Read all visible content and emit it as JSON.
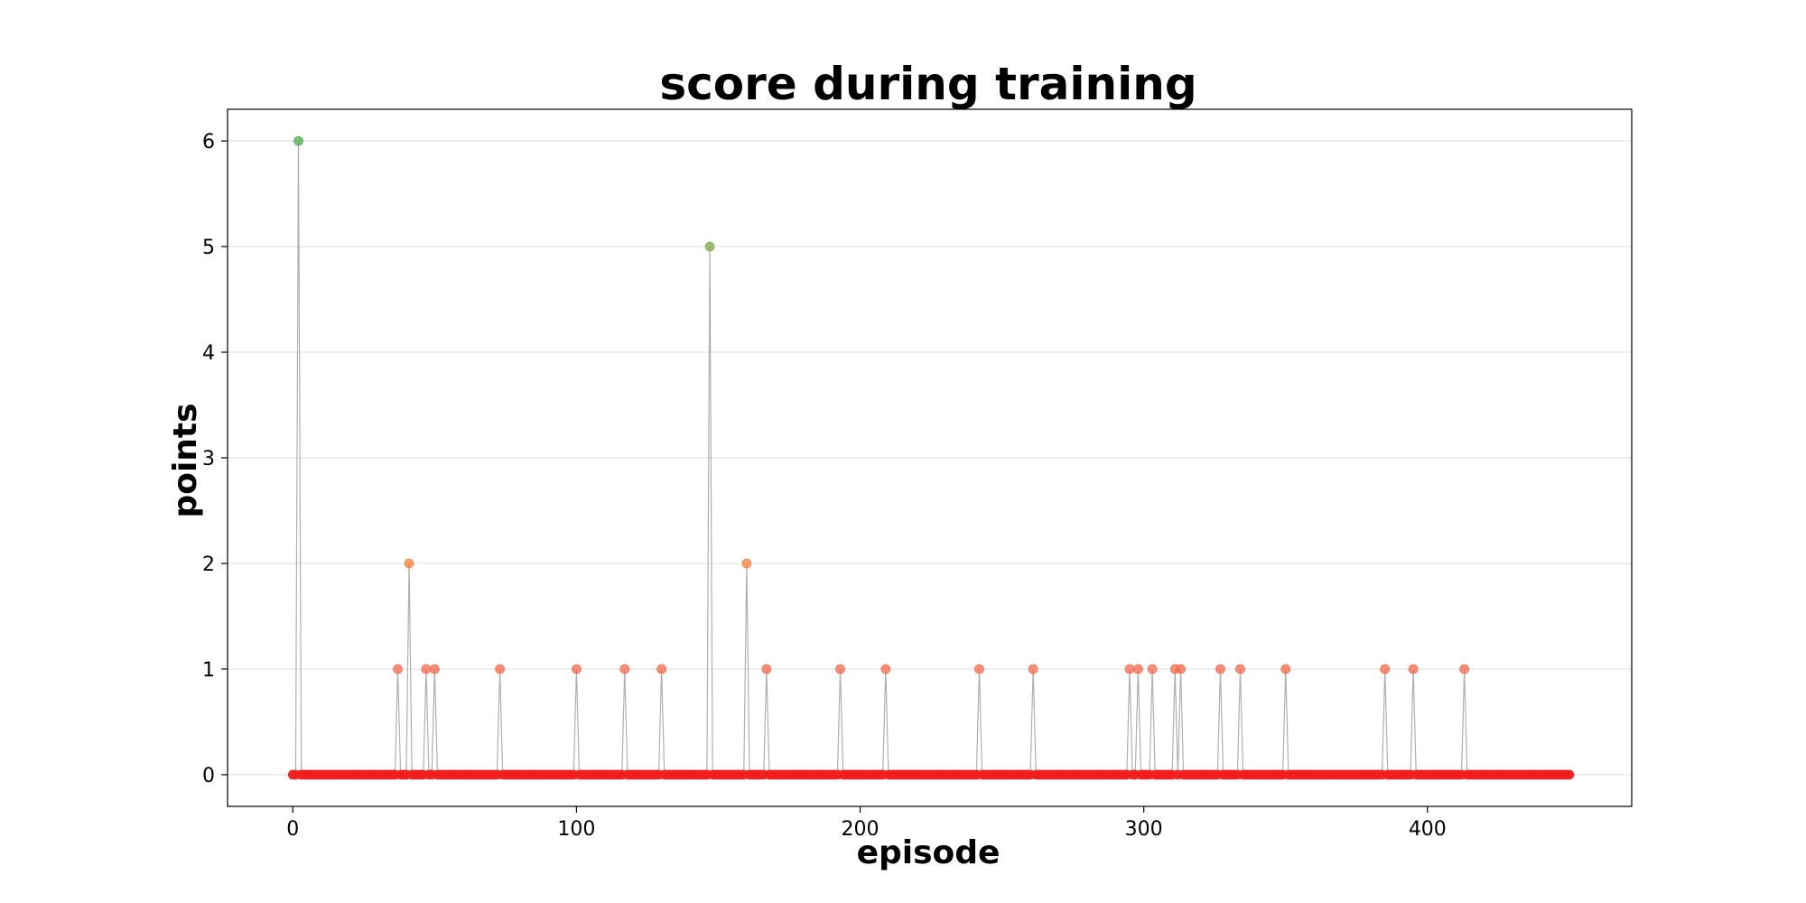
{
  "chart_data": {
    "type": "scatter",
    "title": "score during training",
    "xlabel": "episode",
    "ylabel": "points",
    "xlim": [
      -23,
      472
    ],
    "ylim": [
      -0.3,
      6.3
    ],
    "xticks": [
      0,
      100,
      200,
      300,
      400
    ],
    "yticks": [
      0,
      1,
      2,
      3,
      4,
      5,
      6
    ],
    "grid": "y",
    "legend": "none",
    "episode_count": 451,
    "nonzero_scores": [
      {
        "episode": 2,
        "points": 6
      },
      {
        "episode": 37,
        "points": 1
      },
      {
        "episode": 41,
        "points": 2
      },
      {
        "episode": 47,
        "points": 1
      },
      {
        "episode": 50,
        "points": 1
      },
      {
        "episode": 73,
        "points": 1
      },
      {
        "episode": 100,
        "points": 1
      },
      {
        "episode": 117,
        "points": 1
      },
      {
        "episode": 130,
        "points": 1
      },
      {
        "episode": 147,
        "points": 5
      },
      {
        "episode": 160,
        "points": 2
      },
      {
        "episode": 167,
        "points": 1
      },
      {
        "episode": 193,
        "points": 1
      },
      {
        "episode": 209,
        "points": 1
      },
      {
        "episode": 242,
        "points": 1
      },
      {
        "episode": 261,
        "points": 1
      },
      {
        "episode": 295,
        "points": 1
      },
      {
        "episode": 298,
        "points": 1
      },
      {
        "episode": 303,
        "points": 1
      },
      {
        "episode": 311,
        "points": 1
      },
      {
        "episode": 313,
        "points": 1
      },
      {
        "episode": 327,
        "points": 1
      },
      {
        "episode": 334,
        "points": 1
      },
      {
        "episode": 350,
        "points": 1
      },
      {
        "episode": 385,
        "points": 1
      },
      {
        "episode": 395,
        "points": 1
      },
      {
        "episode": 413,
        "points": 1
      }
    ],
    "colors": {
      "line": "#b0b0b0",
      "grid": "#dddddd",
      "score_0": "#f21d1d",
      "score_1": "#f46a4e",
      "score_2": "#f07f3c",
      "score_5": "#7faa4a",
      "score_6": "#4ea84e"
    }
  }
}
